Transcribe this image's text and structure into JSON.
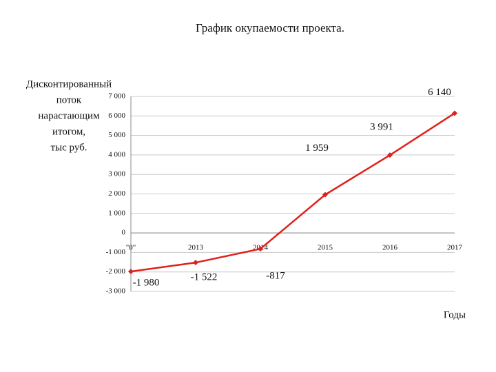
{
  "chart_data": {
    "type": "line",
    "title": "График окупаемости проекта.",
    "y_label": [
      "Дисконтированный",
      "поток",
      "нарастающим",
      "итогом,",
      "тыс руб."
    ],
    "x_label": "Годы",
    "categories": [
      "\"0\"",
      "2013",
      "2014",
      "2015",
      "2016",
      "2017"
    ],
    "series": [
      {
        "color": "#e0201b",
        "values": [
          -1980,
          -1522,
          -817,
          1959,
          3991,
          6140
        ],
        "value_labels": [
          "-1 980",
          "-1 522",
          "-817",
          "1 959",
          "3 991",
          "6 140"
        ]
      }
    ],
    "ylim": [
      -3000,
      7000
    ],
    "yticks": [
      {
        "value": -3000,
        "label": "-3 000"
      },
      {
        "value": -2000,
        "label": "-2 000"
      },
      {
        "value": -1000,
        "label": "-1 000"
      },
      0,
      {
        "value": 1000,
        "label": "1 000"
      },
      {
        "value": 2000,
        "label": "2 000"
      },
      {
        "value": 3000,
        "label": "3 000"
      },
      {
        "value": 4000,
        "label": "4 000"
      },
      {
        "value": 5000,
        "label": "5 000"
      },
      {
        "value": 6000,
        "label": "6 000"
      },
      {
        "value": 7000,
        "label": "7 000"
      }
    ],
    "grid": true
  }
}
